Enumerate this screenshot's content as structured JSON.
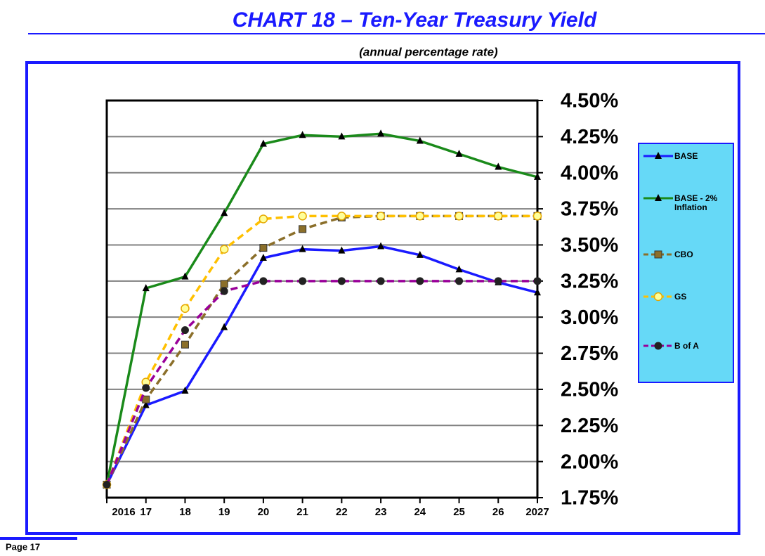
{
  "chart_data": {
    "type": "line",
    "title": "CHART 18 – Ten-Year Treasury Yield",
    "subtitle": "(annual percentage rate)",
    "footer": "Page 17",
    "x": [
      2016,
      2017,
      2018,
      2019,
      2020,
      2021,
      2022,
      2023,
      2024,
      2025,
      2026,
      2027
    ],
    "xlim": [
      2016,
      2027
    ],
    "xticks": [
      2016,
      {
        "value": 2017,
        "label": "17"
      },
      {
        "value": 2018,
        "label": "18"
      },
      {
        "value": 2019,
        "label": "19"
      },
      {
        "value": 2020,
        "label": "20"
      },
      {
        "value": 2021,
        "label": "21"
      },
      {
        "value": 2022,
        "label": "22"
      },
      {
        "value": 2023,
        "label": "23"
      },
      {
        "value": 2024,
        "label": "24"
      },
      {
        "value": 2025,
        "label": "25"
      },
      {
        "value": 2026,
        "label": "26"
      },
      2027
    ],
    "ylim": [
      1.75,
      4.5
    ],
    "yticks": [
      {
        "value": 1.75,
        "label": "1.75%"
      },
      {
        "value": 2.0,
        "label": "2.00%"
      },
      {
        "value": 2.25,
        "label": "2.25%"
      },
      {
        "value": 2.5,
        "label": "2.50%"
      },
      {
        "value": 2.75,
        "label": "2.75%"
      },
      {
        "value": 3.0,
        "label": "3.00%"
      },
      {
        "value": 3.25,
        "label": "3.25%"
      },
      {
        "value": 3.5,
        "label": "3.50%"
      },
      {
        "value": 3.75,
        "label": "3.75%"
      },
      {
        "value": 4.0,
        "label": "4.00%"
      },
      {
        "value": 4.25,
        "label": "4.25%"
      },
      {
        "value": 4.5,
        "label": "4.50%"
      }
    ],
    "grid": true,
    "legend": "right",
    "series": [
      {
        "name": "BASE",
        "color": "#1a1aff",
        "dash": false,
        "marker": "triangle",
        "values": [
          1.84,
          2.39,
          2.49,
          2.93,
          3.41,
          3.47,
          3.46,
          3.49,
          3.43,
          3.33,
          3.24,
          3.17
        ]
      },
      {
        "name": "BASE - 2% Inflation",
        "color": "#1a8a1a",
        "dash": false,
        "marker": "triangle",
        "values": [
          1.84,
          3.2,
          3.28,
          3.72,
          4.2,
          4.26,
          4.25,
          4.27,
          4.22,
          4.13,
          4.04,
          3.97
        ]
      },
      {
        "name": "CBO",
        "color": "#8b6f2a",
        "dash": true,
        "marker": "square",
        "values": [
          1.84,
          2.43,
          2.81,
          3.23,
          3.48,
          3.61,
          3.69,
          3.7,
          3.7,
          3.7,
          3.7,
          3.7
        ]
      },
      {
        "name": "GS",
        "color": "#ffc000",
        "dash": true,
        "marker": "circle-open",
        "values": [
          1.84,
          2.55,
          3.06,
          3.47,
          3.68,
          3.7,
          3.7,
          3.7,
          3.7,
          3.7,
          3.7,
          3.7
        ]
      },
      {
        "name": "B of A",
        "color": "#990099",
        "dash": true,
        "marker": "circle",
        "values": [
          1.84,
          2.51,
          2.91,
          3.18,
          3.25,
          3.25,
          3.25,
          3.25,
          3.25,
          3.25,
          3.25,
          3.25
        ]
      }
    ]
  }
}
